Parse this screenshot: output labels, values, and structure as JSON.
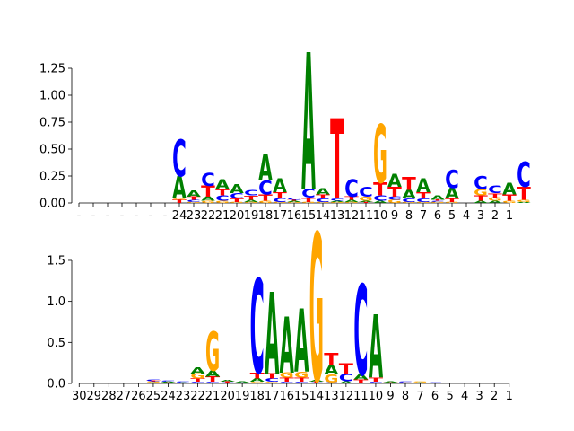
{
  "colors": {
    "A": "#008000",
    "C": "#0000ff",
    "G": "#ffa500",
    "T": "#ff0000"
  },
  "chart_data": [
    {
      "type": "sequence-logo",
      "ylim": [
        0,
        1.4
      ],
      "yticks": [
        0.0,
        0.25,
        0.5,
        0.75,
        1.0,
        1.25
      ],
      "ytick_labels": [
        "0.00",
        "0.25",
        "0.50",
        "0.75",
        "1.00",
        "1.25"
      ],
      "xtick_labels": [
        "-",
        "-",
        "-",
        "-",
        "-",
        "-",
        "-",
        "24",
        "23",
        "22",
        "21",
        "20",
        "19",
        "18",
        "17",
        "16",
        "15",
        "14",
        "13",
        "12",
        "11",
        "10",
        "9",
        "8",
        "7",
        "6",
        "5",
        "4",
        "3",
        "2",
        "1"
      ],
      "positions": [
        [],
        [],
        [],
        [],
        [],
        [],
        [],
        [
          {
            "b": "T",
            "h": 0.03
          },
          {
            "b": "G",
            "h": 0.01
          },
          {
            "b": "A",
            "h": 0.21
          },
          {
            "b": "C",
            "h": 0.34
          }
        ],
        [
          {
            "b": "G",
            "h": 0.01
          },
          {
            "b": "C",
            "h": 0.02
          },
          {
            "b": "T",
            "h": 0.03
          },
          {
            "b": "A",
            "h": 0.06
          }
        ],
        [
          {
            "b": "G",
            "h": 0.02
          },
          {
            "b": "A",
            "h": 0.04
          },
          {
            "b": "T",
            "h": 0.1
          },
          {
            "b": "C",
            "h": 0.12
          }
        ],
        [
          {
            "b": "G",
            "h": 0.02
          },
          {
            "b": "C",
            "h": 0.05
          },
          {
            "b": "T",
            "h": 0.06
          },
          {
            "b": "A",
            "h": 0.09
          }
        ],
        [
          {
            "b": "G",
            "h": 0.01
          },
          {
            "b": "T",
            "h": 0.03
          },
          {
            "b": "C",
            "h": 0.05
          },
          {
            "b": "A",
            "h": 0.08
          }
        ],
        [
          {
            "b": "G",
            "h": 0.01
          },
          {
            "b": "A",
            "h": 0.02
          },
          {
            "b": "T",
            "h": 0.04
          },
          {
            "b": "C",
            "h": 0.05
          }
        ],
        [
          {
            "b": "G",
            "h": 0.02
          },
          {
            "b": "T",
            "h": 0.06
          },
          {
            "b": "C",
            "h": 0.13
          },
          {
            "b": "A",
            "h": 0.25
          }
        ],
        [
          {
            "b": "G",
            "h": 0.01
          },
          {
            "b": "C",
            "h": 0.04
          },
          {
            "b": "T",
            "h": 0.05
          },
          {
            "b": "A",
            "h": 0.13
          }
        ],
        [
          {
            "b": "G",
            "h": 0.01
          },
          {
            "b": "A",
            "h": 0.01
          },
          {
            "b": "T",
            "h": 0.01
          },
          {
            "b": "C",
            "h": 0.02
          }
        ],
        [
          {
            "b": "G",
            "h": 0.01
          },
          {
            "b": "T",
            "h": 0.04
          },
          {
            "b": "C",
            "h": 0.08
          },
          {
            "b": "A",
            "h": 1.27
          }
        ],
        [
          {
            "b": "G",
            "h": 0.01
          },
          {
            "b": "C",
            "h": 0.03
          },
          {
            "b": "T",
            "h": 0.04
          },
          {
            "b": "A",
            "h": 0.06
          }
        ],
        [
          {
            "b": "G",
            "h": 0.01
          },
          {
            "b": "A",
            "h": 0.01
          },
          {
            "b": "C",
            "h": 0.02
          },
          {
            "b": "T",
            "h": 0.74
          }
        ],
        [
          {
            "b": "G",
            "h": 0.01
          },
          {
            "b": "A",
            "h": 0.02
          },
          {
            "b": "T",
            "h": 0.03
          },
          {
            "b": "C",
            "h": 0.16
          }
        ],
        [
          {
            "b": "T",
            "h": 0.01
          },
          {
            "b": "A",
            "h": 0.01
          },
          {
            "b": "G",
            "h": 0.04
          },
          {
            "b": "C",
            "h": 0.09
          }
        ],
        [
          {
            "b": "A",
            "h": 0.02
          },
          {
            "b": "C",
            "h": 0.05
          },
          {
            "b": "T",
            "h": 0.12
          },
          {
            "b": "G",
            "h": 0.54
          }
        ],
        [
          {
            "b": "G",
            "h": 0.03
          },
          {
            "b": "C",
            "h": 0.03
          },
          {
            "b": "T",
            "h": 0.09
          },
          {
            "b": "A",
            "h": 0.12
          }
        ],
        [
          {
            "b": "G",
            "h": 0.01
          },
          {
            "b": "C",
            "h": 0.03
          },
          {
            "b": "A",
            "h": 0.08
          },
          {
            "b": "T",
            "h": 0.12
          }
        ],
        [
          {
            "b": "G",
            "h": 0.01
          },
          {
            "b": "C",
            "h": 0.03
          },
          {
            "b": "T",
            "h": 0.06
          },
          {
            "b": "A",
            "h": 0.13
          }
        ],
        [
          {
            "b": "G",
            "h": 0.01
          },
          {
            "b": "C",
            "h": 0.01
          },
          {
            "b": "T",
            "h": 0.01
          },
          {
            "b": "A",
            "h": 0.04
          }
        ],
        [
          {
            "b": "G",
            "h": 0.01
          },
          {
            "b": "T",
            "h": 0.03
          },
          {
            "b": "A",
            "h": 0.1
          },
          {
            "b": "C",
            "h": 0.17
          }
        ],
        [],
        [
          {
            "b": "A",
            "h": 0.02
          },
          {
            "b": "T",
            "h": 0.05
          },
          {
            "b": "G",
            "h": 0.06
          },
          {
            "b": "C",
            "h": 0.12
          }
        ],
        [
          {
            "b": "A",
            "h": 0.02
          },
          {
            "b": "G",
            "h": 0.03
          },
          {
            "b": "T",
            "h": 0.04
          },
          {
            "b": "C",
            "h": 0.07
          }
        ],
        [
          {
            "b": "G",
            "h": 0.02
          },
          {
            "b": "T",
            "h": 0.06
          },
          {
            "b": "A",
            "h": 0.11
          }
        ],
        [
          {
            "b": "A",
            "h": 0.01
          },
          {
            "b": "G",
            "h": 0.02
          },
          {
            "b": "T",
            "h": 0.12
          },
          {
            "b": "C",
            "h": 0.23
          }
        ]
      ]
    },
    {
      "type": "sequence-logo",
      "ylim": [
        0,
        1.85
      ],
      "yticks": [
        0.0,
        0.5,
        1.0,
        1.5
      ],
      "ytick_labels": [
        "0.0",
        "0.5",
        "1.0",
        "1.5"
      ],
      "xtick_labels": [
        "30",
        "29",
        "28",
        "27",
        "26",
        "25",
        "24",
        "23",
        "22",
        "21",
        "20",
        "19",
        "18",
        "17",
        "16",
        "15",
        "14",
        "13",
        "12",
        "11",
        "10",
        "9",
        "8",
        "7",
        "6",
        "5",
        "4",
        "3",
        "2",
        "1"
      ],
      "positions": [
        [],
        [],
        [],
        [],
        [],
        [
          {
            "b": "A",
            "h": 0.01
          },
          {
            "b": "G",
            "h": 0.01
          },
          {
            "b": "T",
            "h": 0.01
          },
          {
            "b": "C",
            "h": 0.02
          }
        ],
        [
          {
            "b": "T",
            "h": 0.01
          },
          {
            "b": "A",
            "h": 0.01
          },
          {
            "b": "C",
            "h": 0.01
          }
        ],
        [
          {
            "b": "A",
            "h": 0.01
          },
          {
            "b": "C",
            "h": 0.01
          }
        ],
        [
          {
            "b": "C",
            "h": 0.02
          },
          {
            "b": "T",
            "h": 0.04
          },
          {
            "b": "G",
            "h": 0.06
          },
          {
            "b": "A",
            "h": 0.08
          }
        ],
        [
          {
            "b": "C",
            "h": 0.02
          },
          {
            "b": "T",
            "h": 0.06
          },
          {
            "b": "A",
            "h": 0.08
          },
          {
            "b": "G",
            "h": 0.48
          }
        ],
        [
          {
            "b": "C",
            "h": 0.01
          },
          {
            "b": "T",
            "h": 0.01
          },
          {
            "b": "A",
            "h": 0.02
          }
        ],
        [
          {
            "b": "C",
            "h": 0.01
          },
          {
            "b": "A",
            "h": 0.01
          }
        ],
        [
          {
            "b": "G",
            "h": 0.02
          },
          {
            "b": "A",
            "h": 0.04
          },
          {
            "b": "T",
            "h": 0.07
          },
          {
            "b": "C",
            "h": 1.15
          }
        ],
        [
          {
            "b": "G",
            "h": 0.02
          },
          {
            "b": "C",
            "h": 0.04
          },
          {
            "b": "T",
            "h": 0.06
          },
          {
            "b": "A",
            "h": 1.0
          }
        ],
        [
          {
            "b": "C",
            "h": 0.02
          },
          {
            "b": "T",
            "h": 0.05
          },
          {
            "b": "G",
            "h": 0.06
          },
          {
            "b": "A",
            "h": 0.68
          }
        ],
        [
          {
            "b": "C",
            "h": 0.02
          },
          {
            "b": "T",
            "h": 0.05
          },
          {
            "b": "G",
            "h": 0.07
          },
          {
            "b": "A",
            "h": 0.77
          }
        ],
        [
          {
            "b": "C",
            "h": 0.01
          },
          {
            "b": "T",
            "h": 0.01
          },
          {
            "b": "A",
            "h": 0.02
          },
          {
            "b": "G",
            "h": 1.8
          }
        ],
        [
          {
            "b": "C",
            "h": 0.01
          },
          {
            "b": "G",
            "h": 0.1
          },
          {
            "b": "A",
            "h": 0.12
          },
          {
            "b": "T",
            "h": 0.14
          }
        ],
        [
          {
            "b": "A",
            "h": 0.03
          },
          {
            "b": "C",
            "h": 0.09
          },
          {
            "b": "T",
            "h": 0.13
          }
        ],
        [
          {
            "b": "T",
            "h": 0.05
          },
          {
            "b": "A",
            "h": 0.06
          },
          {
            "b": "C",
            "h": 1.1
          }
        ],
        [
          {
            "b": "C",
            "h": 0.02
          },
          {
            "b": "T",
            "h": 0.05
          },
          {
            "b": "A",
            "h": 0.77
          }
        ],
        [
          {
            "b": "T",
            "h": 0.01
          },
          {
            "b": "A",
            "h": 0.01
          }
        ],
        [
          {
            "b": "G",
            "h": 0.01
          },
          {
            "b": "C",
            "h": 0.01
          }
        ],
        [
          {
            "b": "A",
            "h": 0.01
          },
          {
            "b": "G",
            "h": 0.01
          }
        ],
        [
          {
            "b": "C",
            "h": 0.01
          }
        ],
        [],
        [],
        [],
        [],
        []
      ]
    }
  ]
}
